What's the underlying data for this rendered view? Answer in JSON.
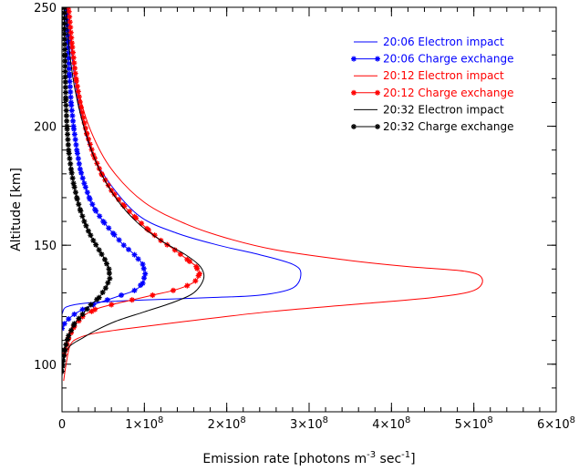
{
  "chart_data": {
    "type": "line",
    "xlabel": "Emission rate [photons m",
    "xlabel_sup1": "-3",
    "xlabel_mid": " sec",
    "xlabel_sup2": "-1",
    "xlabel_end": "]",
    "ylabel": "Altitude [km]",
    "xlim": [
      0,
      600000000
    ],
    "ylim": [
      80,
      250
    ],
    "x_ticks": [
      {
        "value": 0,
        "mant": "0",
        "exp": ""
      },
      {
        "value": 100000000,
        "mant": "1×10",
        "exp": "8"
      },
      {
        "value": 200000000,
        "mant": "2×10",
        "exp": "8"
      },
      {
        "value": 300000000,
        "mant": "3×10",
        "exp": "8"
      },
      {
        "value": 400000000,
        "mant": "4×10",
        "exp": "8"
      },
      {
        "value": 500000000,
        "mant": "5×10",
        "exp": "8"
      },
      {
        "value": 600000000,
        "mant": "6×10",
        "exp": "8"
      }
    ],
    "y_ticks": [
      100,
      150,
      200,
      250
    ],
    "legend_position": "top-right",
    "series": [
      {
        "name": "20:06 Electron impact",
        "color": "#0000ff",
        "marker": "none",
        "x": [
          0,
          1000000,
          2000000,
          5000000,
          15000000,
          40000000,
          100000000,
          180000000,
          240000000,
          280000000,
          290000000,
          280000000,
          240000000,
          190000000,
          140000000,
          95000000,
          60000000,
          35000000,
          20000000,
          12000000,
          8000000
        ],
        "y": [
          121,
          122,
          123,
          124,
          125,
          126,
          127,
          128,
          129,
          132,
          138,
          142,
          146,
          150,
          155,
          162,
          175,
          190,
          210,
          230,
          250
        ]
      },
      {
        "name": "20:06 Charge exchange",
        "color": "#0000ff",
        "marker": "asterisk",
        "x": [
          0,
          3000000,
          8000000,
          15000000,
          25000000,
          38000000,
          55000000,
          72000000,
          88000000,
          98000000,
          101000000,
          98000000,
          88000000,
          75000000,
          62000000,
          50000000,
          40000000,
          33000000,
          27000000,
          22000000,
          18000000,
          14000000,
          11000000,
          9000000,
          7000000,
          5500000
        ],
        "y": [
          115,
          117,
          119,
          121,
          123,
          125,
          127,
          129,
          131,
          134,
          138,
          142,
          146,
          150,
          155,
          160,
          165,
          170,
          176,
          182,
          190,
          200,
          210,
          222,
          236,
          250
        ]
      },
      {
        "name": "20:12 Electron impact",
        "color": "#ff0000",
        "marker": "none",
        "x": [
          2000000,
          5000000,
          10000000,
          20000000,
          40000000,
          80000000,
          150000000,
          250000000,
          350000000,
          450000000,
          500000000,
          510000000,
          490000000,
          420000000,
          340000000,
          260000000,
          200000000,
          150000000,
          100000000,
          60000000,
          35000000,
          20000000,
          12000000,
          8000000
        ],
        "y": [
          93,
          100,
          108,
          111,
          113,
          115,
          118,
          122,
          125,
          128,
          131,
          136,
          139,
          141,
          144,
          148,
          153,
          159,
          168,
          182,
          198,
          215,
          233,
          250
        ]
      },
      {
        "name": "20:12 Charge exchange",
        "color": "#ff0000",
        "marker": "asterisk",
        "x": [
          3000000,
          8000000,
          15000000,
          25000000,
          40000000,
          60000000,
          85000000,
          110000000,
          135000000,
          152000000,
          162000000,
          167000000,
          163000000,
          152000000,
          137000000,
          120000000,
          103000000,
          88000000,
          74000000,
          60000000,
          48000000,
          38000000,
          30000000,
          23000000,
          17000000,
          12000000,
          8000000
        ],
        "y": [
          104,
          111,
          116,
          120,
          123,
          125,
          127,
          129,
          131,
          133,
          135,
          138,
          141,
          144,
          148,
          152,
          157,
          162,
          167,
          173,
          180,
          188,
          197,
          208,
          220,
          235,
          250
        ]
      },
      {
        "name": "20:32 Electron impact",
        "color": "#000000",
        "marker": "none",
        "x": [
          0,
          3000000,
          8000000,
          15000000,
          25000000,
          40000000,
          65000000,
          100000000,
          135000000,
          160000000,
          172000000,
          168000000,
          150000000,
          120000000,
          90000000,
          65000000,
          45000000,
          28000000,
          16000000,
          9000000,
          5000000
        ],
        "y": [
          95,
          103,
          107,
          109,
          111,
          114,
          118,
          122,
          126,
          130,
          136,
          141,
          146,
          152,
          160,
          170,
          182,
          198,
          215,
          232,
          250
        ]
      },
      {
        "name": "20:32 Charge exchange",
        "color": "#000000",
        "marker": "asterisk",
        "x": [
          0,
          3000000,
          8000000,
          15000000,
          25000000,
          35000000,
          45000000,
          53000000,
          58000000,
          57000000,
          52000000,
          45000000,
          38000000,
          32000000,
          27000000,
          22000000,
          18000000,
          14000000,
          11000000,
          8000000,
          6000000,
          4500000,
          3500000,
          2500000
        ],
        "y": [
          97,
          106,
          112,
          117,
          121,
          125,
          128,
          132,
          136,
          140,
          144,
          148,
          152,
          156,
          160,
          165,
          170,
          176,
          182,
          190,
          200,
          212,
          230,
          250
        ]
      }
    ]
  }
}
